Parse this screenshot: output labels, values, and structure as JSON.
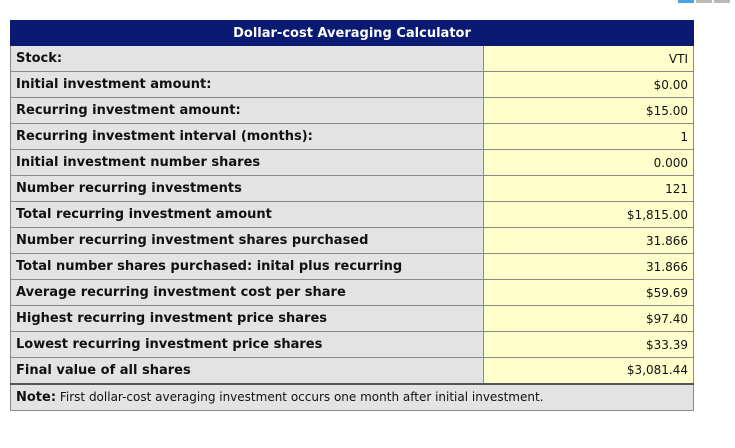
{
  "colors": {
    "title_bar": "#0a1a73",
    "label_bg": "#e3e3e3",
    "value_bg": "#ffffcc",
    "corner_tab_1": "#4aa3e0",
    "corner_tab_2": "#b9b9b9",
    "corner_tab_3": "#b9b9b9"
  },
  "calculator": {
    "title": "Dollar-cost Averaging Calculator",
    "rows": [
      {
        "label": "Stock:",
        "value": "VTI"
      },
      {
        "label": "Initial investment amount:",
        "value": "$0.00"
      },
      {
        "label": "Recurring investment amount:",
        "value": "$15.00"
      },
      {
        "label": "Recurring investment interval (months):",
        "value": "1"
      },
      {
        "label": "Initial investment number shares",
        "value": "0.000"
      },
      {
        "label": "Number recurring investments",
        "value": "121"
      },
      {
        "label": "Total recurring investment amount",
        "value": "$1,815.00"
      },
      {
        "label": "Number recurring investment shares purchased",
        "value": "31.866"
      },
      {
        "label": "Total number shares purchased: inital plus recurring",
        "value": "31.866"
      },
      {
        "label": "Average recurring investment cost per share",
        "value": "$59.69"
      },
      {
        "label": "Highest recurring investment price shares",
        "value": "$97.40"
      },
      {
        "label": "Lowest recurring investment price shares",
        "value": "$33.39"
      },
      {
        "label": "Final value of all shares",
        "value": "$3,081.44"
      }
    ],
    "note_label": "Note:",
    "note_text": "First dollar-cost averaging investment occurs one month after initial investment."
  }
}
